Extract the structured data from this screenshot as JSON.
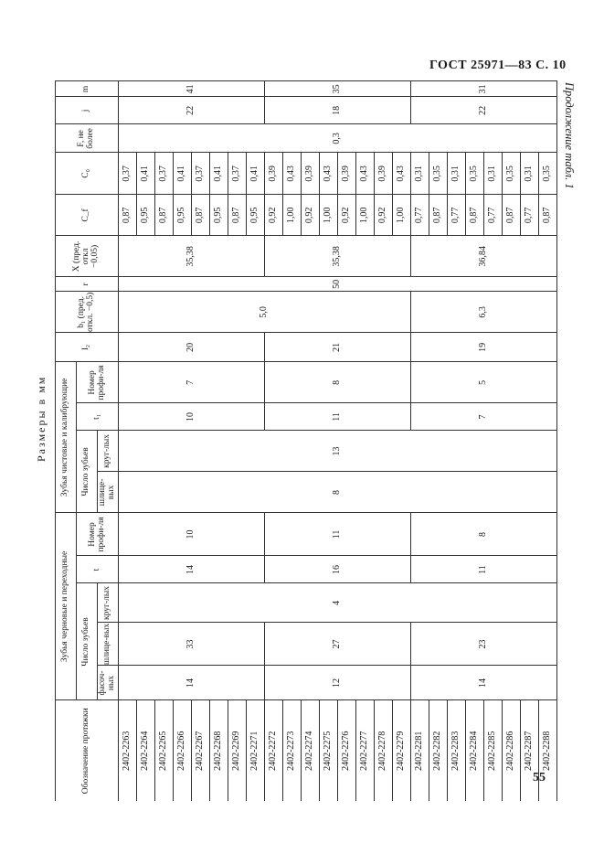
{
  "page": {
    "header": "ГОСТ 25971—83 С. 10",
    "continuation": "Продолжение табл. 1",
    "units": "Размеры в мм",
    "page_number": "55"
  },
  "table": {
    "headers": {
      "designation": "Обозначение протяжки",
      "rough_group": "Зубья черновые и переходные",
      "finish_group": "Зубья чистовые и калибрующие",
      "teeth_count": "Число зубьев",
      "chamfer": "фасоч-ных",
      "spline": "шлице-вых",
      "round": "круг-лых",
      "t": "t",
      "profile_no": "Номер профи-ля",
      "t1": "t₁",
      "l2": "l₂",
      "b1": "b₁ (пред. откл. −0,5)",
      "r": "r",
      "X": "X (пред. откл −0,05)",
      "Cf": "C_f",
      "C0": "C₀",
      "F": "F, не более",
      "j": "j",
      "m": "m"
    },
    "rows": [
      {
        "designation": "2402-2263",
        "cf": "0,87",
        "c0": "0,37"
      },
      {
        "designation": "2402-2264",
        "cf": "0,95",
        "c0": "0,41"
      },
      {
        "designation": "2402-2265",
        "cf": "0,87",
        "c0": "0,37"
      },
      {
        "designation": "2402-2266",
        "cf": "0,95",
        "c0": "0,41"
      },
      {
        "designation": "2402-2267",
        "cf": "0,87",
        "c0": "0,37"
      },
      {
        "designation": "2402-2268",
        "cf": "0,95",
        "c0": "0,41"
      },
      {
        "designation": "2402-2269",
        "cf": "0,87",
        "c0": "0,37"
      },
      {
        "designation": "2402-2271",
        "cf": "0,95",
        "c0": "0,41"
      },
      {
        "designation": "2402-2272",
        "cf": "0,92",
        "c0": "0,39"
      },
      {
        "designation": "2402-2273",
        "cf": "1,00",
        "c0": "0,43"
      },
      {
        "designation": "2402-2274",
        "cf": "0,92",
        "c0": "0,39"
      },
      {
        "designation": "2402-2275",
        "cf": "1,00",
        "c0": "0,43"
      },
      {
        "designation": "2402-2276",
        "cf": "0,92",
        "c0": "0,39"
      },
      {
        "designation": "2402-2277",
        "cf": "1,00",
        "c0": "0,43"
      },
      {
        "designation": "2402-2278",
        "cf": "0,92",
        "c0": "0,39"
      },
      {
        "designation": "2402-2279",
        "cf": "1,00",
        "c0": "0,43"
      },
      {
        "designation": "2402-2281",
        "cf": "0,77",
        "c0": "0,31"
      },
      {
        "designation": "2402-2282",
        "cf": "0,87",
        "c0": "0,35"
      },
      {
        "designation": "2402-2283",
        "cf": "0,77",
        "c0": "0,31"
      },
      {
        "designation": "2402-2284",
        "cf": "0,87",
        "c0": "0,35"
      },
      {
        "designation": "2402-2285",
        "cf": "0,77",
        "c0": "0,31"
      },
      {
        "designation": "2402-2286",
        "cf": "0,87",
        "c0": "0,35"
      },
      {
        "designation": "2402-2287",
        "cf": "0,77",
        "c0": "0,31"
      },
      {
        "designation": "2402-2288",
        "cf": "0,87",
        "c0": "0,35"
      }
    ],
    "groups": [
      {
        "chamfer": "14",
        "spline": "33",
        "t": "14",
        "profile": "10",
        "t1": "10",
        "fin_profile": "7",
        "l2": "20",
        "b1": "5,0",
        "X": "35,38",
        "j": "22",
        "m": "41"
      },
      {
        "chamfer": "12",
        "spline": "27",
        "t": "16",
        "profile": "11",
        "t1": "11",
        "fin_profile": "8",
        "l2": "21",
        "X": "35,38",
        "j": "18",
        "m": "35"
      },
      {
        "chamfer": "14",
        "spline": "23",
        "t": "11",
        "profile": "8",
        "t1": "7",
        "fin_profile": "5",
        "l2": "19",
        "b1": "6,3",
        "X": "36,84",
        "j": "22",
        "m": "31"
      }
    ],
    "common": {
      "rough_round": "4",
      "fin_spline": "8",
      "fin_round": "13",
      "r": "50",
      "F": "0,3"
    }
  }
}
